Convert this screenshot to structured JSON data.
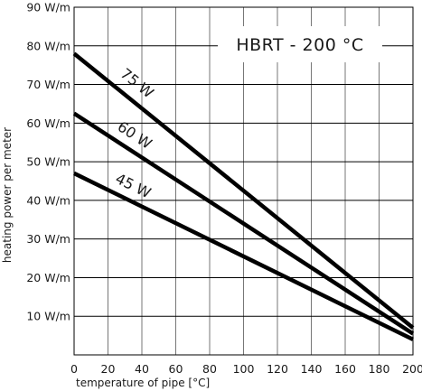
{
  "chart_data": {
    "type": "line",
    "title": "HBRT - 200 °C",
    "xlabel": "temperature of pipe [°C]",
    "ylabel": "heating power per meter",
    "xlim": [
      0,
      200
    ],
    "ylim": [
      0,
      90
    ],
    "x_ticks": [
      "0",
      "20",
      "40",
      "60",
      "80",
      "100",
      "120",
      "140",
      "160",
      "180",
      "200"
    ],
    "y_ticks": [
      "90 W/m",
      "80 W/m",
      "70 W/m",
      "60 W/m",
      "50 W/m",
      "40 W/m",
      "30 W/m",
      "20 W/m",
      "10 W/m"
    ],
    "grid": true,
    "series": [
      {
        "name": "75 W",
        "x": [
          0,
          200
        ],
        "y": [
          78,
          7
        ]
      },
      {
        "name": "60 W",
        "x": [
          0,
          200
        ],
        "y": [
          62.5,
          5.5
        ]
      },
      {
        "name": "45 W",
        "x": [
          0,
          200
        ],
        "y": [
          47,
          4
        ]
      }
    ]
  }
}
